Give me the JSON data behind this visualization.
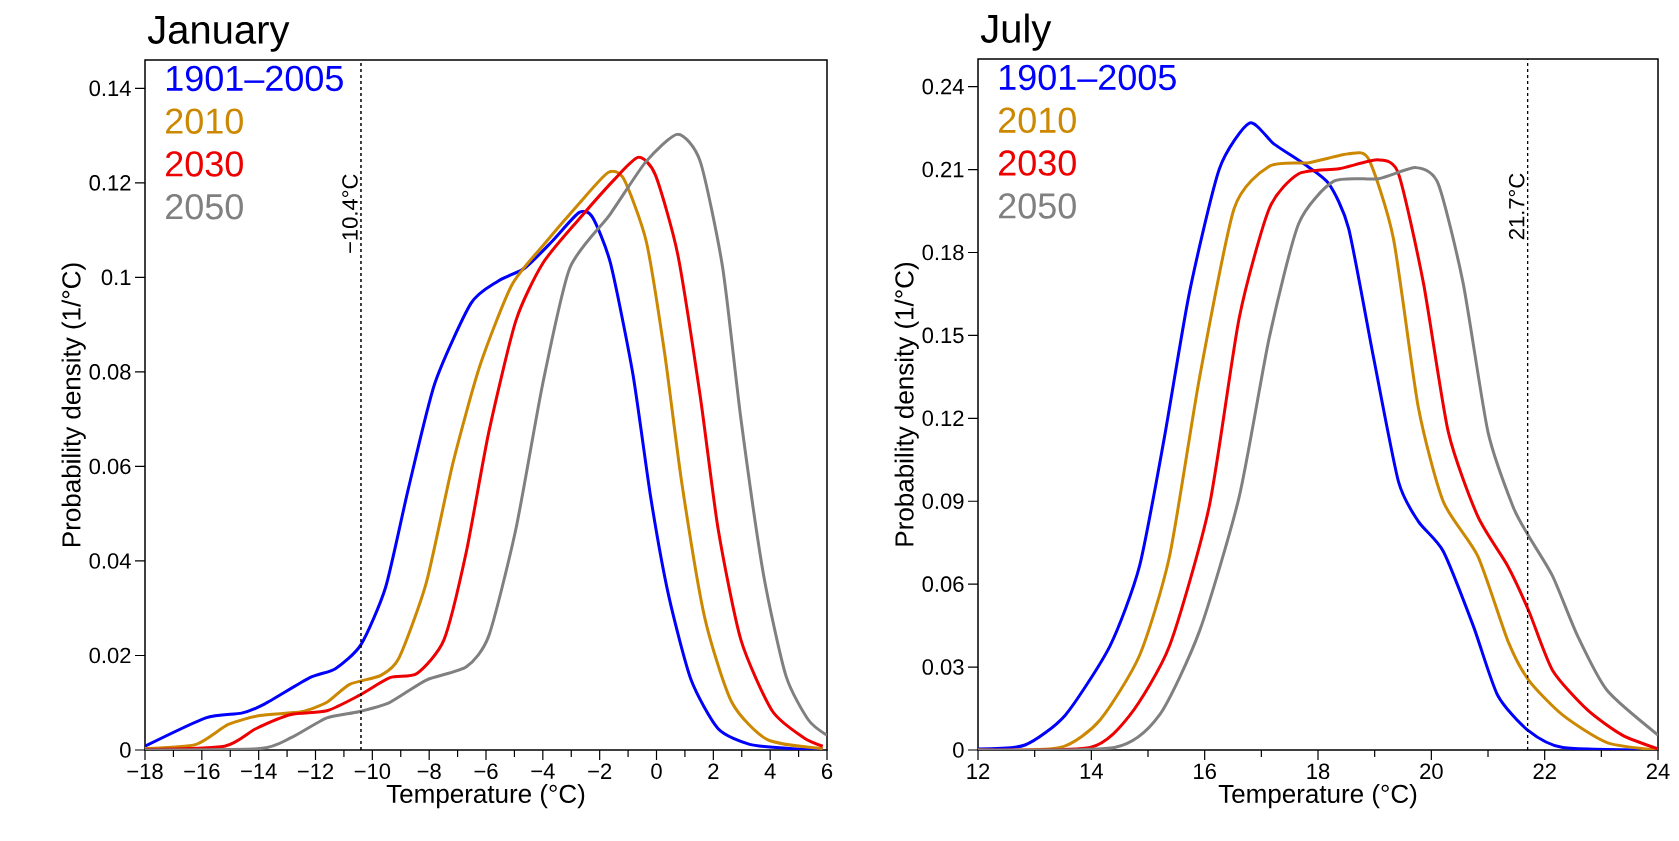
{
  "chart_data": [
    {
      "type": "line",
      "title": "January",
      "xlabel": "Temperature (°C)",
      "ylabel": "Probability density (1/°C)",
      "legend": "top left",
      "marker": "none",
      "line_style": "solid",
      "grid": false,
      "xlim": [
        -18,
        6
      ],
      "ylim": [
        0,
        0.146
      ],
      "xticks": [
        {
          "value": -18,
          "label": "−18"
        },
        {
          "value": -16,
          "label": "−16"
        },
        {
          "value": -14,
          "label": "−14"
        },
        {
          "value": -12,
          "label": "−12"
        },
        {
          "value": -10,
          "label": "−10"
        },
        {
          "value": -8,
          "label": "−8"
        },
        {
          "value": -6,
          "label": "−6"
        },
        {
          "value": -4,
          "label": "−4"
        },
        {
          "value": -2,
          "label": "−2"
        },
        0,
        2,
        4,
        6
      ],
      "yticks": [
        0,
        0.02,
        0.04,
        0.06,
        0.08,
        0.1,
        0.12,
        0.14
      ],
      "ref_lines": [
        {
          "axis": "x",
          "value": -10.4,
          "label": "−10.4°C",
          "line_style": "dashed",
          "color": "#000000"
        }
      ],
      "series": [
        {
          "name": "1901–2005",
          "color": "#0000ff",
          "x": [
            -18,
            -15.86,
            -14.6,
            -13.8,
            -12.2,
            -11.3,
            -10.4,
            -9.53,
            -8.74,
            -7.8,
            -6.53,
            -5.58,
            -4.63,
            -3.68,
            -2.73,
            -2.26,
            -1.62,
            -0.83,
            -0.2,
            0.43,
            1.22,
            2.17,
            3.28,
            4.7,
            5.85
          ],
          "values": [
            0.0008,
            0.0068,
            0.0078,
            0.0097,
            0.0153,
            0.0172,
            0.0223,
            0.0345,
            0.0551,
            0.0776,
            0.0945,
            0.0992,
            0.102,
            0.1076,
            0.1137,
            0.1128,
            0.103,
            0.0795,
            0.0533,
            0.0326,
            0.0148,
            0.0045,
            0.0012,
            0.0003,
            0.0001
          ]
        },
        {
          "name": "2010",
          "color": "#cc8800",
          "x": [
            -18,
            -16.2,
            -15.07,
            -13.96,
            -12.5,
            -11.6,
            -10.8,
            -9.7,
            -9.06,
            -8.1,
            -7.16,
            -6.21,
            -5.1,
            -4.0,
            -2.73,
            -1.7,
            -1.15,
            -0.36,
            0.28,
            0.9,
            1.7,
            2.65,
            3.9,
            5.85
          ],
          "values": [
            0.0003,
            0.0012,
            0.0054,
            0.0073,
            0.0081,
            0.0101,
            0.0139,
            0.0158,
            0.0195,
            0.0354,
            0.0608,
            0.0814,
            0.0983,
            0.1067,
            0.1156,
            0.1222,
            0.1208,
            0.1076,
            0.0842,
            0.0561,
            0.0279,
            0.0101,
            0.0022,
            0.0003
          ]
        },
        {
          "name": "2030",
          "color": "#ee0000",
          "x": [
            -18,
            -15.2,
            -14.1,
            -12.86,
            -11.6,
            -10.48,
            -9.38,
            -8.43,
            -7.48,
            -6.69,
            -5.9,
            -4.95,
            -4.0,
            -2.73,
            -1.47,
            -0.64,
            -0.04,
            0.75,
            1.54,
            2.17,
            2.97,
            4.07,
            5.18,
            5.85
          ],
          "values": [
            0.0001,
            0.0008,
            0.0045,
            0.0075,
            0.0083,
            0.0115,
            0.0153,
            0.0162,
            0.0233,
            0.042,
            0.0673,
            0.0908,
            0.103,
            0.1123,
            0.1208,
            0.1254,
            0.1217,
            0.1048,
            0.0748,
            0.0467,
            0.0233,
            0.0083,
            0.0026,
            0.0008
          ]
        },
        {
          "name": "2050",
          "color": "#808080",
          "x": [
            -18,
            -13.96,
            -12.86,
            -11.6,
            -10.48,
            -9.38,
            -8.1,
            -6.69,
            -5.9,
            -4.95,
            -4.0,
            -3.05,
            -1.64,
            -0.37,
            0.75,
            1.54,
            2.33,
            2.97,
            3.76,
            4.55,
            5.34,
            6.0
          ],
          "values": [
            0.0,
            0.0003,
            0.0026,
            0.0068,
            0.0081,
            0.0101,
            0.0148,
            0.0176,
            0.0242,
            0.0467,
            0.0776,
            0.102,
            0.1133,
            0.1245,
            0.1303,
            0.1245,
            0.102,
            0.0701,
            0.0373,
            0.0158,
            0.0064,
            0.0031
          ]
        }
      ]
    },
    {
      "type": "line",
      "title": "July",
      "xlabel": "Temperature (°C)",
      "ylabel": "Probability density (1/°C)",
      "legend": "top left",
      "marker": "none",
      "line_style": "solid",
      "grid": false,
      "xlim": [
        12,
        24
      ],
      "ylim": [
        0,
        0.25
      ],
      "xticks": [
        12,
        14,
        16,
        18,
        20,
        22,
        24
      ],
      "yticks": [
        0,
        0.03,
        0.06,
        0.09,
        0.12,
        0.15,
        0.18,
        0.21,
        0.24
      ],
      "ref_lines": [
        {
          "axis": "x",
          "value": 21.7,
          "label": "21.7°C",
          "line_style": "dashed",
          "color": "#000000"
        }
      ],
      "series": [
        {
          "name": "1901–2005",
          "color": "#0000ff",
          "x": [
            12,
            12.83,
            13.54,
            14.33,
            14.85,
            15.29,
            15.73,
            16.26,
            16.79,
            17.22,
            17.75,
            18.19,
            18.54,
            18.98,
            19.42,
            19.77,
            20.21,
            20.74,
            21.17,
            21.7,
            22.32,
            24
          ],
          "values": [
            0.0004,
            0.0018,
            0.0126,
            0.0377,
            0.0665,
            0.1132,
            0.1654,
            0.2103,
            0.2268,
            0.2193,
            0.2121,
            0.2049,
            0.1887,
            0.142,
            0.0971,
            0.0827,
            0.0719,
            0.0449,
            0.0198,
            0.0072,
            0.0009,
            0
          ]
        },
        {
          "name": "2010",
          "color": "#cc8800",
          "x": [
            12,
            13.45,
            14.15,
            14.85,
            15.38,
            15.91,
            16.52,
            17.14,
            17.84,
            18.54,
            18.89,
            19.33,
            19.77,
            20.21,
            20.82,
            21.35,
            21.72,
            22.32,
            23.1,
            24
          ],
          "values": [
            0,
            0.0009,
            0.0108,
            0.0342,
            0.0701,
            0.1348,
            0.1959,
            0.2112,
            0.2125,
            0.2157,
            0.2139,
            0.1851,
            0.124,
            0.0899,
            0.0701,
            0.0395,
            0.0252,
            0.0126,
            0.0027,
            0
          ]
        },
        {
          "name": "2030",
          "color": "#ee0000",
          "x": [
            12,
            13.98,
            14.68,
            15.38,
            16.08,
            16.61,
            17.14,
            17.66,
            18.37,
            19.07,
            19.42,
            19.86,
            20.3,
            20.82,
            21.35,
            21.72,
            22.14,
            22.76,
            23.37,
            24
          ],
          "values": [
            0,
            0.0009,
            0.0126,
            0.0377,
            0.0881,
            0.1564,
            0.1959,
            0.2085,
            0.2103,
            0.2135,
            0.2085,
            0.169,
            0.115,
            0.0845,
            0.0665,
            0.0503,
            0.0288,
            0.0144,
            0.0054,
            0.0004
          ]
        },
        {
          "name": "2050",
          "color": "#808080",
          "x": [
            12,
            14.41,
            15.2,
            15.91,
            16.61,
            17.14,
            17.66,
            18.28,
            19.07,
            19.73,
            20.12,
            20.56,
            21.0,
            21.44,
            21.72,
            22.14,
            22.58,
            23.1,
            24
          ],
          "values": [
            0,
            0.0009,
            0.0126,
            0.0431,
            0.0917,
            0.1492,
            0.1905,
            0.2058,
            0.2067,
            0.2107,
            0.2049,
            0.169,
            0.115,
            0.0881,
            0.0773,
            0.0629,
            0.0413,
            0.0216,
            0.0054
          ]
        }
      ]
    }
  ]
}
